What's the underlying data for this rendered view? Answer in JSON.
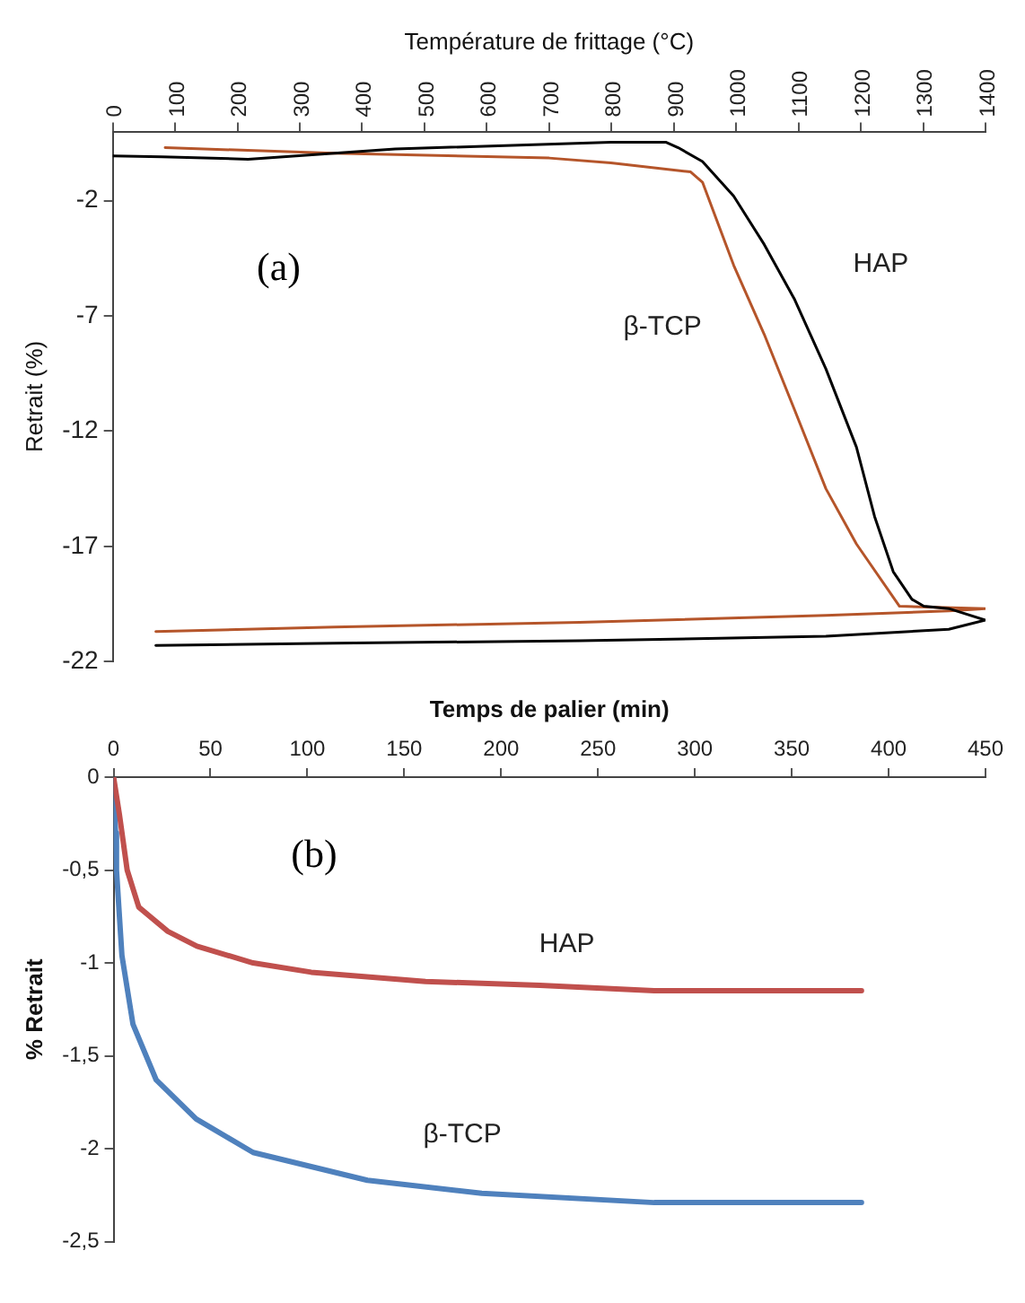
{
  "chart_data": [
    {
      "type": "line",
      "xlabel": "Température de frittage (°C)",
      "ylabel": "Retrait (%)",
      "annotations": [
        "(a)"
      ],
      "xlim": [
        0,
        1400
      ],
      "xticks": [
        0,
        100,
        200,
        300,
        400,
        500,
        600,
        700,
        800,
        900,
        1000,
        1100,
        1200,
        1300,
        1400
      ],
      "ylim": [
        -22,
        1
      ],
      "yticks": [
        -22,
        -17,
        -12,
        -7,
        -2
      ],
      "grid": false,
      "marker": "none",
      "series": [
        {
          "name": "HAP",
          "color": "#000000",
          "x": [
            0,
            79,
            217,
            453,
            799,
            887,
            907,
            946,
            996,
            1045,
            1094,
            1144,
            1193,
            1222,
            1252,
            1282,
            1301,
            1341,
            1400,
            1341,
            1144,
            749,
            355,
            69
          ],
          "values": [
            -0.06,
            -0.1,
            -0.2,
            0.24,
            0.54,
            0.54,
            0.3,
            -0.3,
            -1.8,
            -3.9,
            -6.3,
            -9.3,
            -12.7,
            -15.7,
            -18.1,
            -19.3,
            -19.6,
            -19.7,
            -20.2,
            -20.6,
            -20.9,
            -21.1,
            -21.2,
            -21.3
          ]
        },
        {
          "name": "β-TCP",
          "color": "#b5552a",
          "x": [
            84,
            355,
            700,
            799,
            927,
            946,
            996,
            1045,
            1094,
            1144,
            1193,
            1262,
            1400,
            1341,
            1144,
            749,
            355,
            69
          ],
          "values": [
            0.3,
            0.06,
            -0.15,
            -0.36,
            -0.75,
            -1.2,
            -4.8,
            -7.8,
            -11.1,
            -14.5,
            -16.9,
            -19.6,
            -19.7,
            -19.8,
            -20.0,
            -20.3,
            -20.5,
            -20.7
          ]
        }
      ]
    },
    {
      "type": "line",
      "xlabel": "Temps de palier (min)",
      "ylabel": "% Retrait",
      "annotations": [
        "(b)"
      ],
      "xlim": [
        0,
        450
      ],
      "xticks": [
        0,
        50,
        100,
        150,
        200,
        250,
        300,
        350,
        400,
        450
      ],
      "ylim": [
        -2.5,
        0
      ],
      "yticks": [
        {
          "value": -2.5,
          "label": "-2,5"
        },
        {
          "value": -2,
          "label": "-2"
        },
        {
          "value": -1.5,
          "label": "-1,5"
        },
        {
          "value": -1,
          "label": "-1"
        },
        {
          "value": -0.5,
          "label": "-0,5"
        },
        {
          "value": 0,
          "label": "0"
        }
      ],
      "grid": false,
      "marker": "none",
      "series": [
        {
          "name": "HAP",
          "color": "#c0504d",
          "x": [
            0,
            3,
            7,
            13,
            28,
            43,
            72,
            102,
            161,
            220,
            279,
            386
          ],
          "values": [
            0,
            -0.2,
            -0.5,
            -0.7,
            -0.83,
            -0.91,
            -1.0,
            -1.05,
            -1.1,
            -1.12,
            -1.15,
            -1.15
          ]
        },
        {
          "name": "β-TCP",
          "color": "#4f81bd",
          "x": [
            0,
            1,
            1.5,
            4.3,
            10,
            22,
            42.6,
            72,
            131,
            190,
            279,
            386
          ],
          "values": [
            0,
            -0.3,
            -0.5,
            -0.96,
            -1.33,
            -1.63,
            -1.84,
            -2.02,
            -2.17,
            -2.24,
            -2.29,
            -2.29
          ]
        }
      ]
    }
  ]
}
